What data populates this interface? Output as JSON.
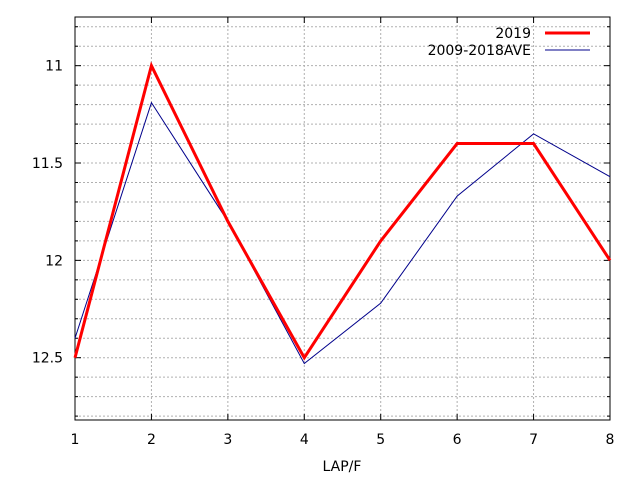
{
  "chart_data": {
    "type": "line",
    "xlabel": "LAP/F",
    "ylabel": "",
    "x": [
      1,
      2,
      3,
      4,
      5,
      6,
      7,
      8
    ],
    "xticks": [
      "1",
      "2",
      "3",
      "4",
      "5",
      "6",
      "7",
      "8"
    ],
    "xlim": [
      1,
      8
    ],
    "ylim": [
      10.75,
      12.82
    ],
    "y_inverted": true,
    "yticks": [
      11,
      11.5,
      12,
      12.5
    ],
    "ytick_labels": [
      "11",
      "11.5",
      "12",
      "12.5"
    ],
    "grid": true,
    "legend_position": "top-right",
    "series": [
      {
        "name": "2019",
        "color": "#ff0000",
        "values": [
          12.5,
          11.0,
          11.8,
          12.5,
          11.9,
          11.4,
          11.4,
          12.0
        ]
      },
      {
        "name": "2009-2018AVE",
        "color": "#00008b",
        "values": [
          12.4,
          11.19,
          11.8,
          12.53,
          12.22,
          11.67,
          11.35,
          11.57
        ]
      }
    ]
  }
}
